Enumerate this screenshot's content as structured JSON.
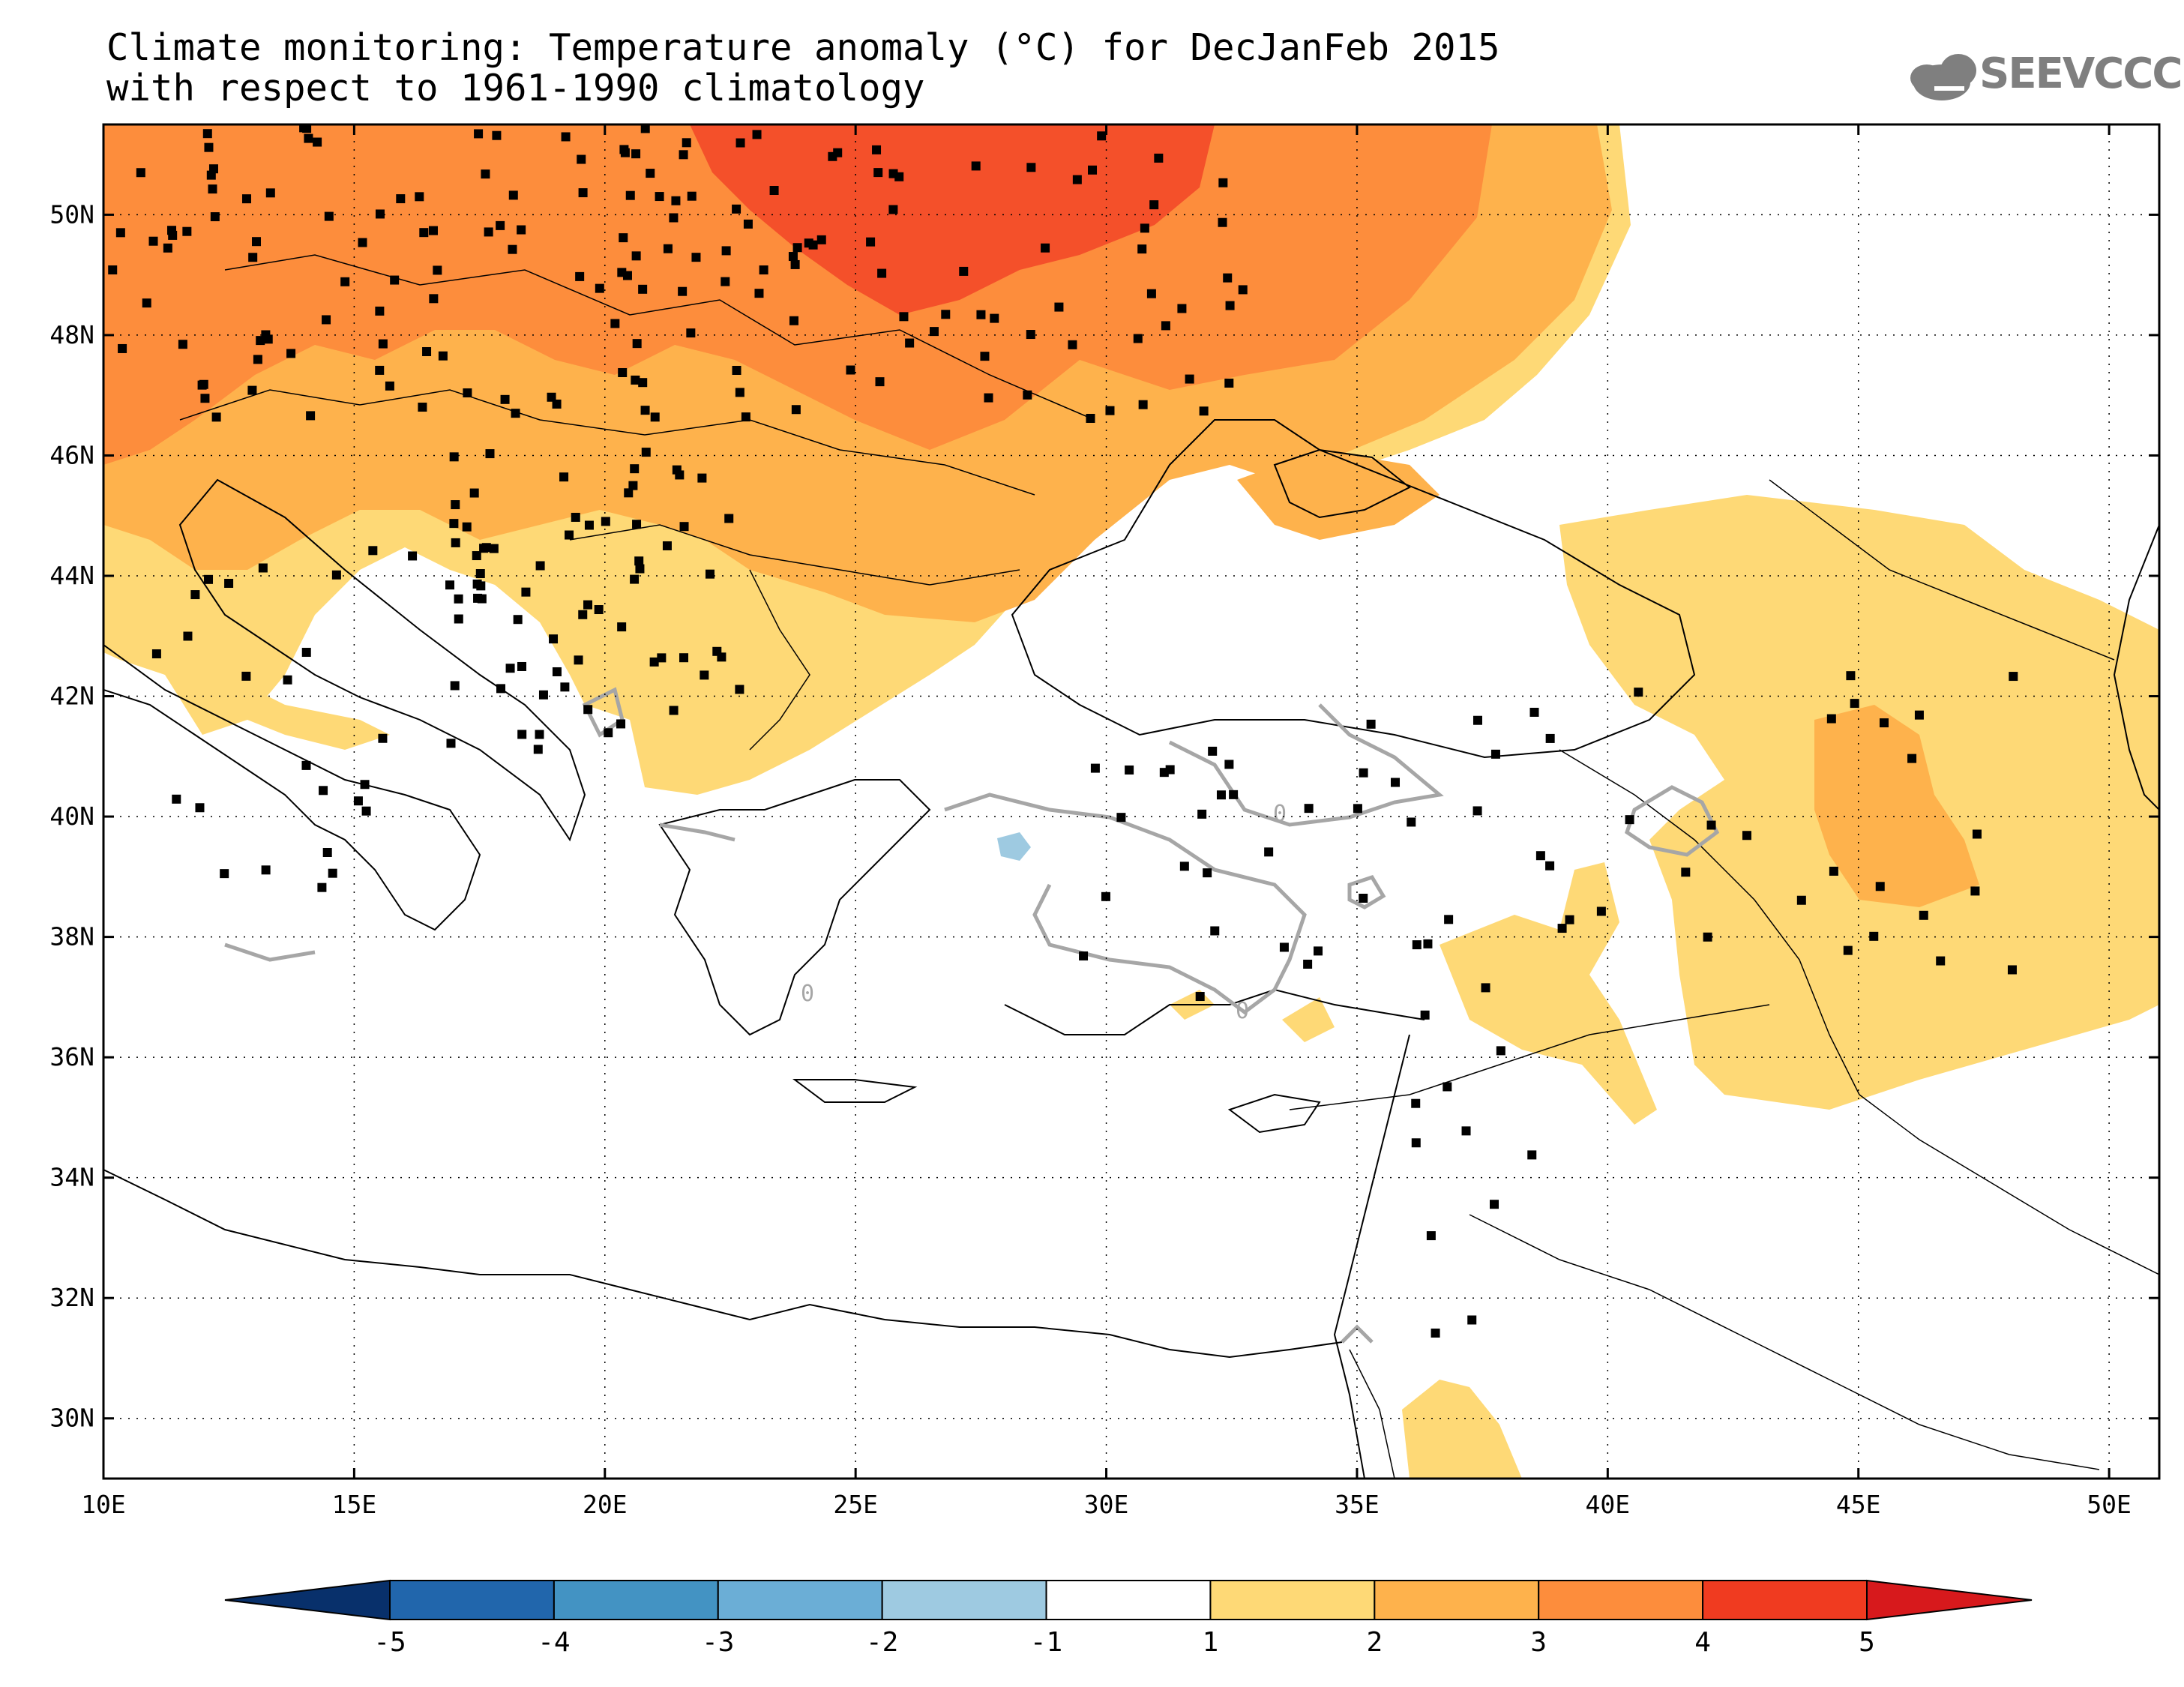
{
  "title": {
    "line1": "Climate monitoring: Temperature anomaly (°C) for DecJanFeb 2015",
    "line2": "with respect to 1961-1990 climatology"
  },
  "logo": {
    "text": "SEEVCCC"
  },
  "axes": {
    "lat_labels": [
      "50N",
      "48N",
      "46N",
      "44N",
      "42N",
      "40N",
      "38N",
      "36N",
      "34N",
      "32N",
      "30N"
    ],
    "lat_values": [
      50,
      48,
      46,
      44,
      42,
      40,
      38,
      36,
      34,
      32,
      30
    ],
    "lon_labels": [
      "10E",
      "15E",
      "20E",
      "25E",
      "30E",
      "35E",
      "40E",
      "45E",
      "50E"
    ],
    "lon_values": [
      10,
      15,
      20,
      25,
      30,
      35,
      40,
      45,
      50
    ],
    "lon_range": [
      10,
      51
    ],
    "lat_range": [
      29,
      51.5
    ]
  },
  "contour_labels": [
    "0",
    "0",
    "0"
  ],
  "colorbar": {
    "labels": [
      "-5",
      "-4",
      "-3",
      "-2",
      "-1",
      "1",
      "2",
      "3",
      "4",
      "5"
    ],
    "colors": [
      "#08306b",
      "#2166ac",
      "#4393c3",
      "#6baed6",
      "#9ecae1",
      "#ffffff",
      "#fed976",
      "#feb24c",
      "#fd8d3c",
      "#f03b20",
      "#d7191c"
    ]
  },
  "palette": {
    "a1_2": "#fed976",
    "a2_3": "#feb24c",
    "a3_4": "#fd8d3c",
    "a4_5": "#f4502a",
    "neg": "#9ecae1",
    "contour": "#a6a6a6",
    "logo": "#7f7f7f"
  }
}
